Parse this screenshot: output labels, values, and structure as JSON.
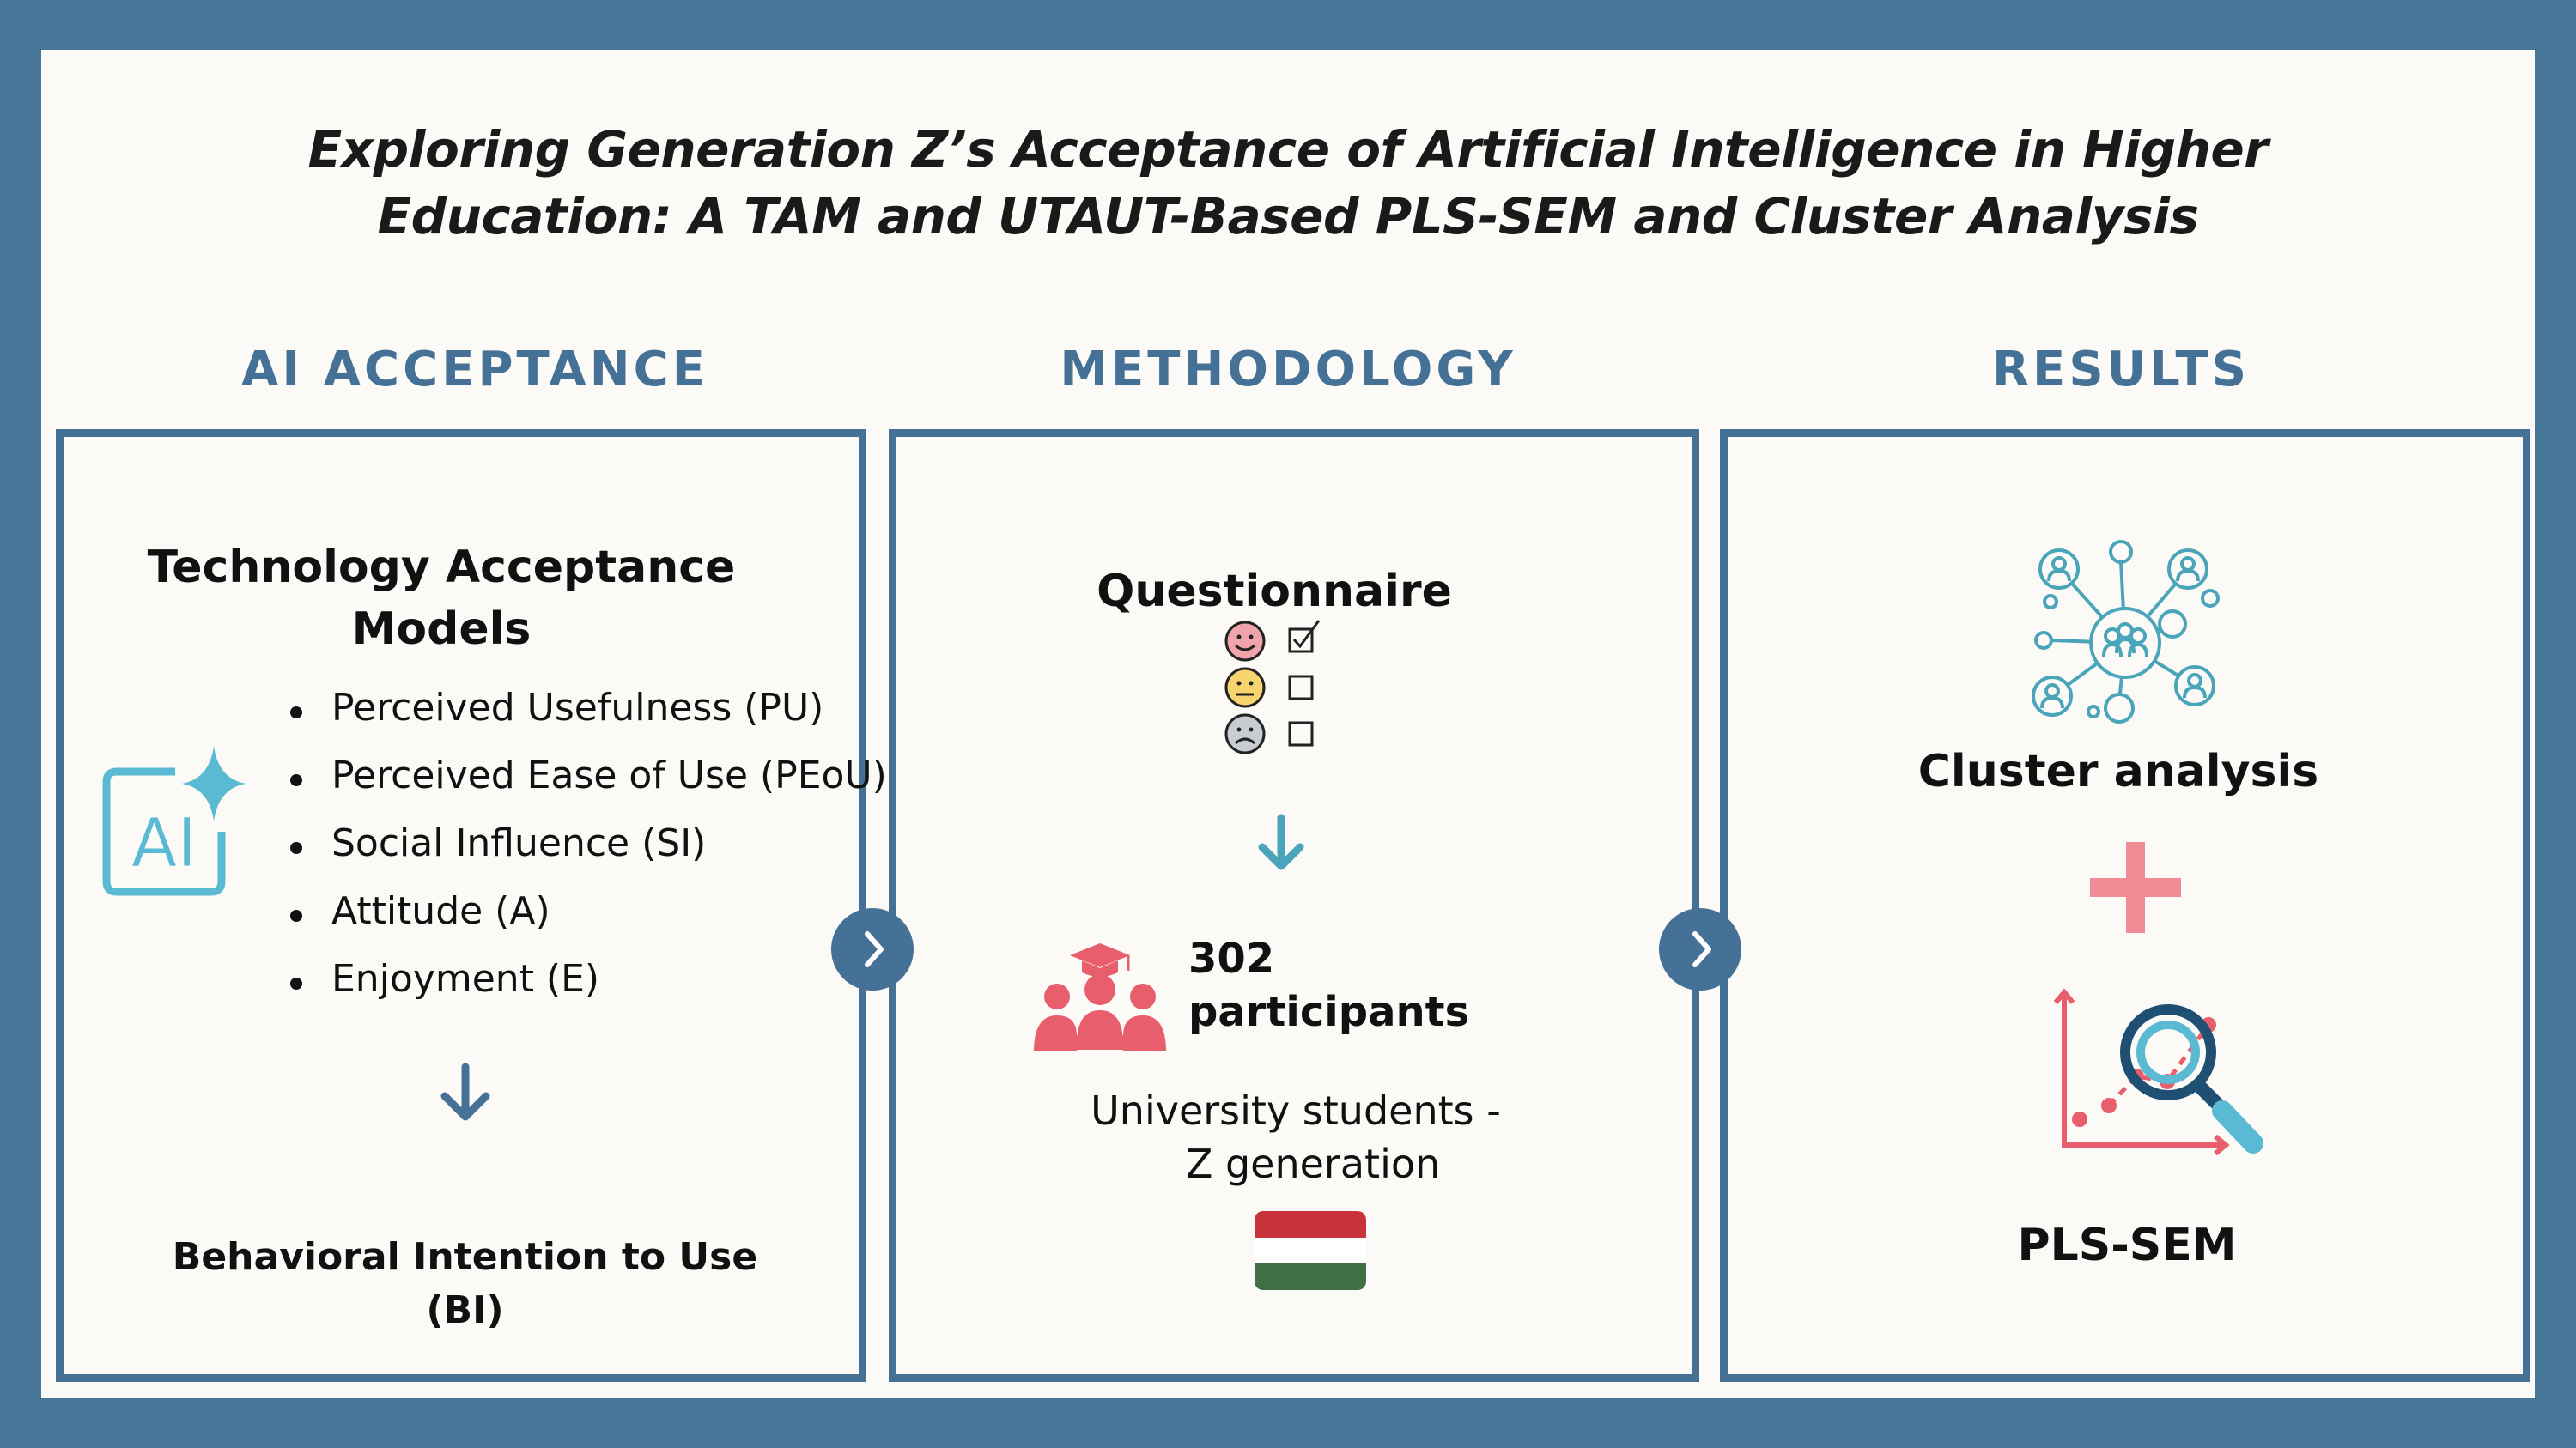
{
  "title": {
    "line1": "Exploring Generation Z’s Acceptance of Artificial Intelligence in Higher",
    "line2": "Education: A TAM and UTAUT-Based PLS-SEM and Cluster Analysis"
  },
  "columns": {
    "acceptance": {
      "heading": "AI ACCEPTANCE",
      "models_title_line1": "Technology Acceptance",
      "models_title_line2": "Models",
      "ai_icon_label": "AI",
      "factors": [
        "Perceived Usefulness (PU)",
        "Perceived Ease of Use (PEoU)",
        "Social Influence (SI)",
        "Attitude (A)",
        "Enjoyment (E)"
      ],
      "outcome_line1": "Behavioral Intention to Use",
      "outcome_line2": "(BI)"
    },
    "methodology": {
      "heading": "METHODOLOGY",
      "instrument": "Questionnaire",
      "participants_count": "302",
      "participants_label": "participants",
      "sample_line1": "University students -",
      "sample_line2": "Z generation",
      "flag_colors": [
        "#c8333b",
        "#ffffff",
        "#3f7043"
      ]
    },
    "results": {
      "heading": "RESULTS",
      "method1": "Cluster analysis",
      "method2": "PLS-SEM"
    }
  },
  "icons": [
    "ai-sparkle-icon",
    "arrow-down-icon",
    "chevron-right-icon",
    "smiley-faces-checklist-icon",
    "student-group-icon",
    "hungary-flag-icon",
    "network-cluster-icon",
    "plus-icon",
    "magnifier-chart-icon"
  ],
  "colors": {
    "frame": "#467598",
    "accent_blue": "#457197",
    "teal": "#4aa4ba",
    "coral": "#e85e6c",
    "pink_plus": "#ef8c96"
  }
}
